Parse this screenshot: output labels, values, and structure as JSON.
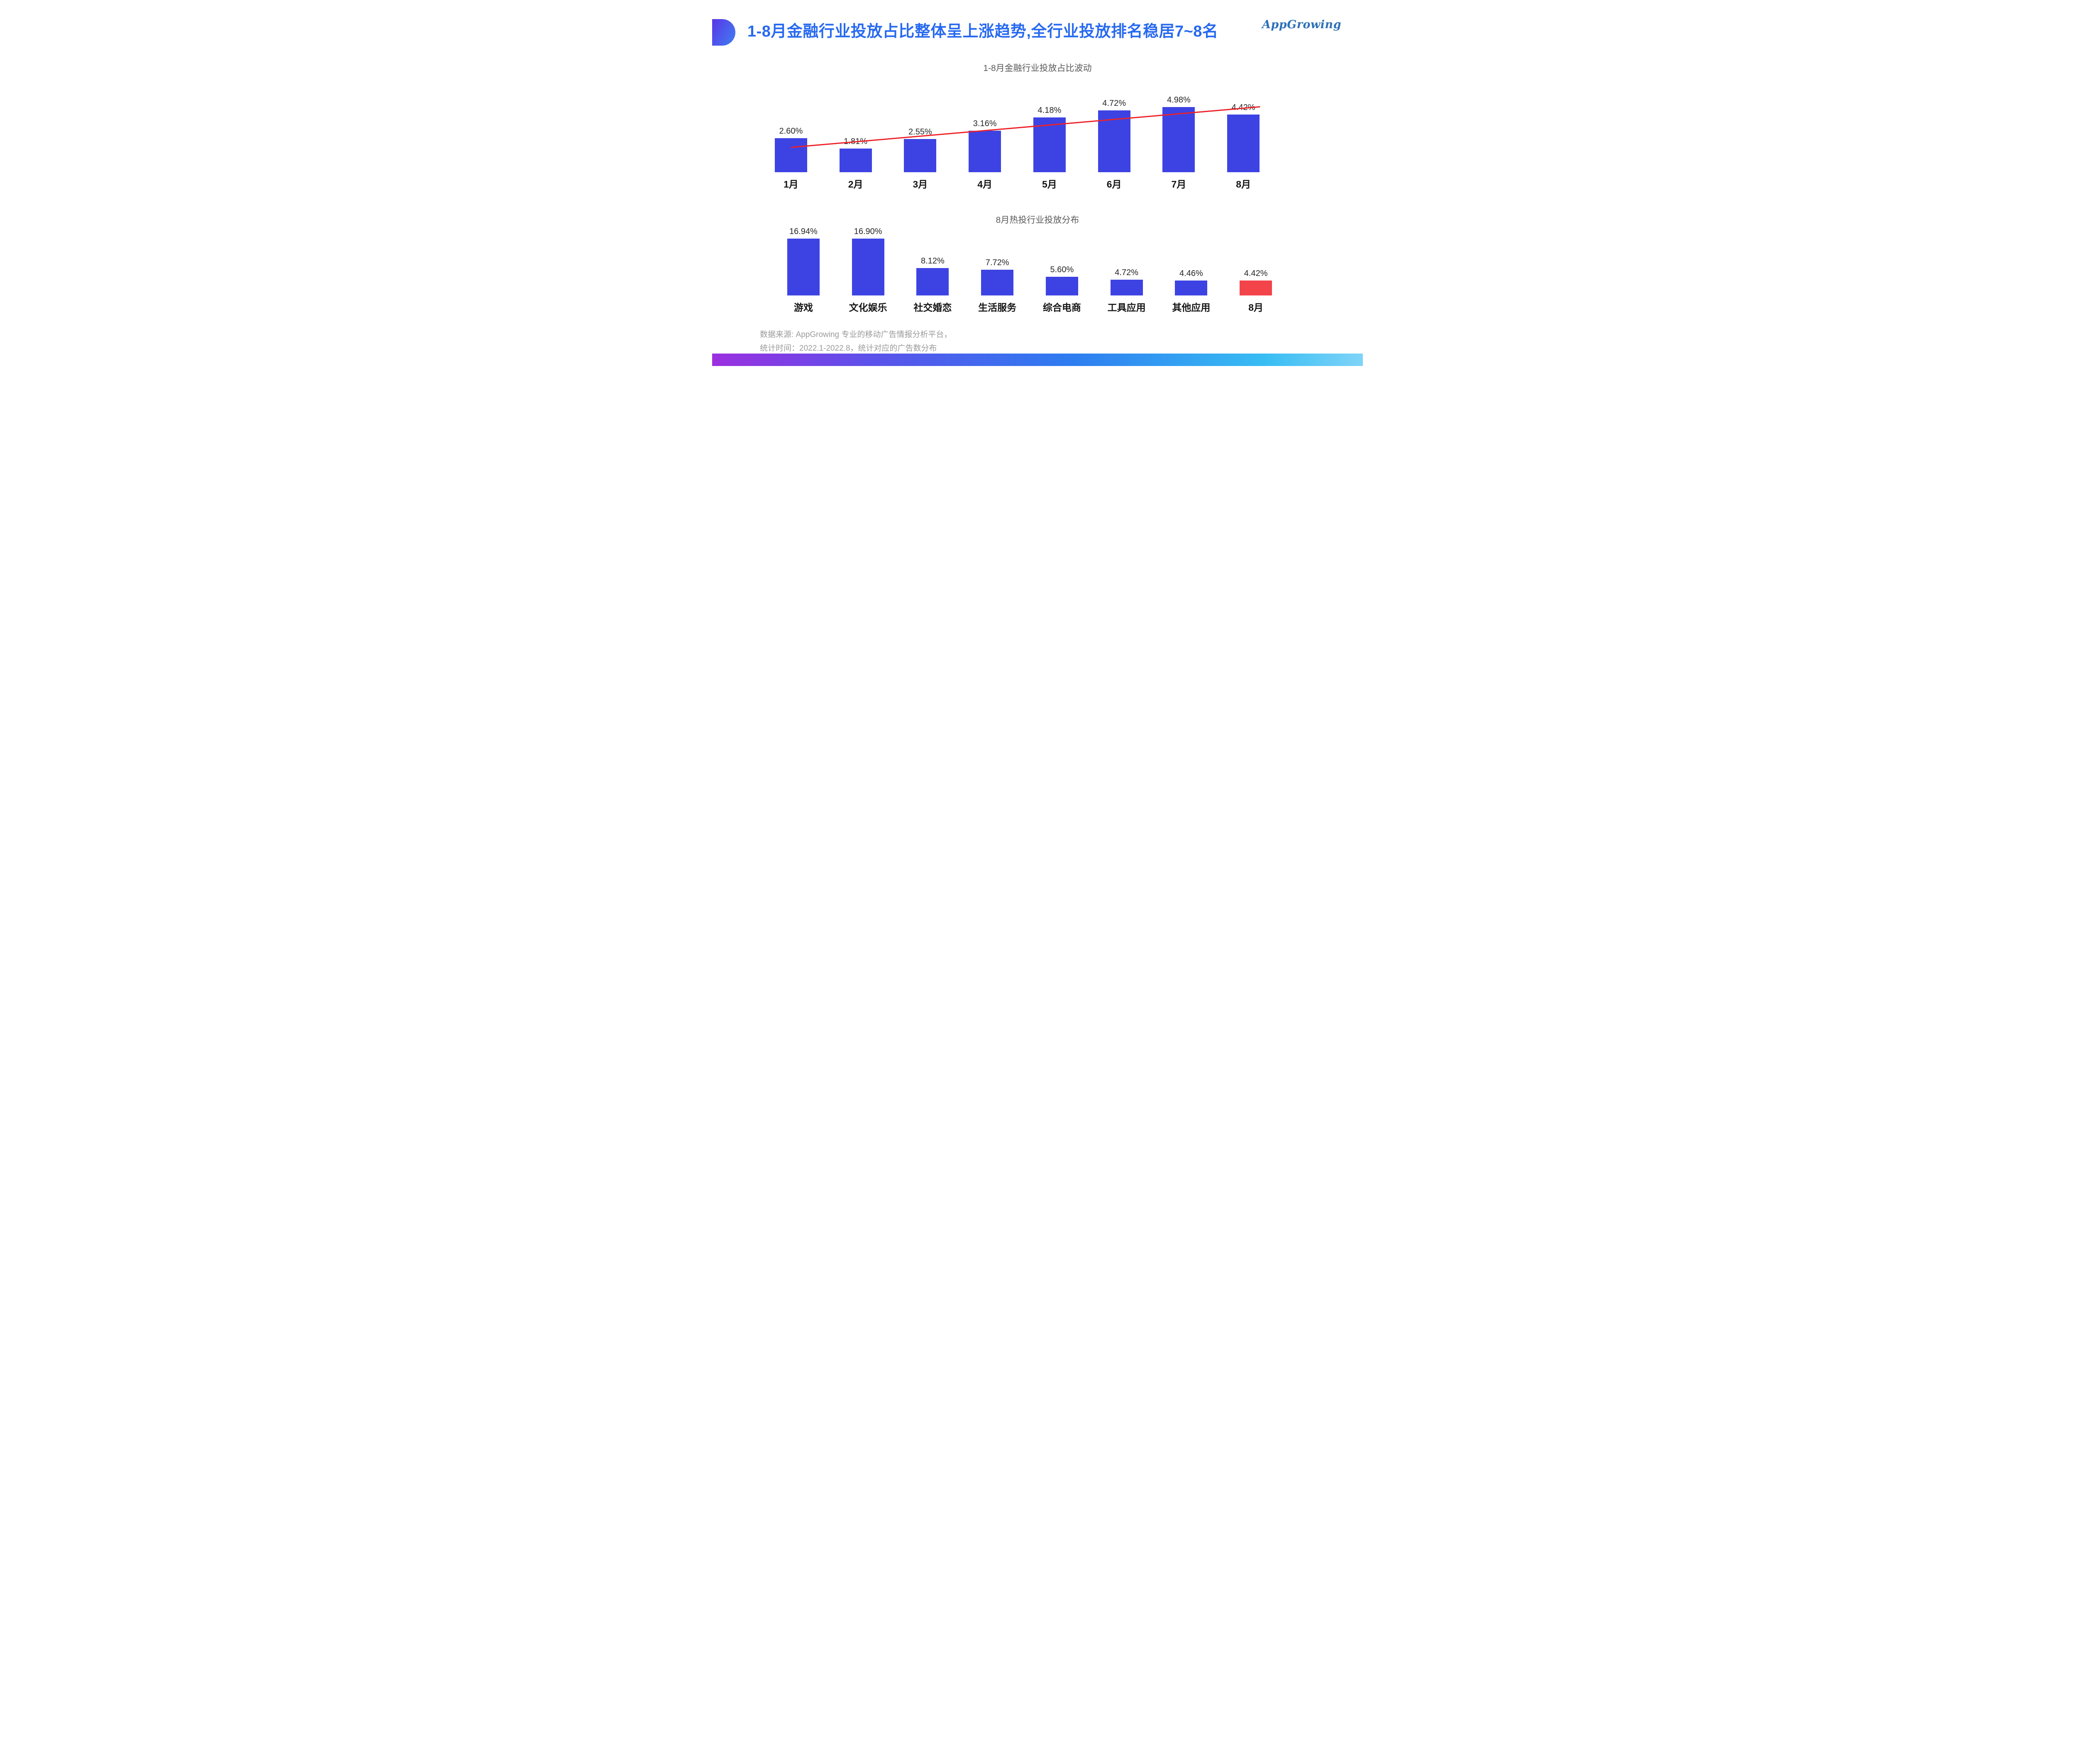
{
  "page": {
    "title": "1-8月金融行业投放占比整体呈上涨趋势,全行业投放排名稳居7~8名"
  },
  "logo": {
    "part1": "App",
    "part2": "Growing"
  },
  "footer": {
    "line1": "数据来源: AppGrowing 专业的移动广告情报分析平台，",
    "line2": "统计时间：2022.1-2022.8，统计对应的广告数分布"
  },
  "colors": {
    "bar_blue": "#3d43e2",
    "bar_red": "#f3444a",
    "trend_red": "#ee2129",
    "title_blue": "#2769f0"
  },
  "chart_data": [
    {
      "type": "bar",
      "title": "1-8月金融行业投放占比波动",
      "categories": [
        "1月",
        "2月",
        "3月",
        "4月",
        "5月",
        "6月",
        "7月",
        "8月"
      ],
      "values": [
        2.6,
        1.81,
        2.55,
        3.16,
        4.18,
        4.72,
        4.98,
        4.42
      ],
      "labels": [
        "2.60%",
        "1.81%",
        "2.55%",
        "3.16%",
        "4.18%",
        "4.72%",
        "4.98%",
        "4.42%"
      ],
      "ylim": [
        0,
        5.2
      ],
      "grid": false,
      "trendline": {
        "start_pct": 1.9,
        "end_pct": 5.0
      }
    },
    {
      "type": "bar",
      "title": "8月热投行业投放分布",
      "categories": [
        "游戏",
        "文化娱乐",
        "社交婚恋",
        "生活服务",
        "综合电商",
        "工具应用",
        "其他应用",
        "8月"
      ],
      "values": [
        16.94,
        16.9,
        8.12,
        7.72,
        5.6,
        4.72,
        4.46,
        4.42
      ],
      "labels": [
        "16.94%",
        "16.90%",
        "8.12%",
        "7.72%",
        "5.60%",
        "4.72%",
        "4.46%",
        "4.42%"
      ],
      "ylim": [
        0,
        18
      ],
      "grid": false,
      "highlight_index": 7
    }
  ]
}
